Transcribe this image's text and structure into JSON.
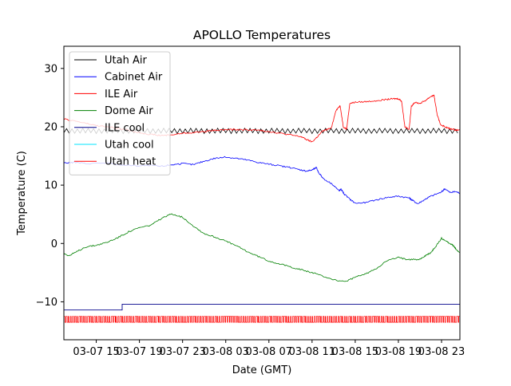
{
  "chart_data": {
    "type": "line",
    "title": "APOLLO Temperatures",
    "xlabel": "Date (GMT)",
    "ylabel": "Temperature (C)",
    "xlim": [
      12,
      48.7
    ],
    "ylim": [
      -16.5,
      33.8
    ],
    "x_unit": "hours since 03-07 00:00 GMT",
    "yticks": [
      -10,
      0,
      10,
      20,
      30
    ],
    "ytick_labels": [
      "−10",
      "0",
      "10",
      "20",
      "30"
    ],
    "xticks": [
      15,
      19,
      23,
      27,
      31,
      35,
      39,
      43,
      47
    ],
    "xtick_labels": [
      "03-07 15",
      "03-07 19",
      "03-07 23",
      "03-08 03",
      "03-08 07",
      "03-08 11",
      "03-08 15",
      "03-08 19",
      "03-08 23"
    ],
    "legend_position": "upper-left",
    "series": [
      {
        "name": "Utah Air",
        "color": "#000000",
        "style": "oscillating",
        "x": [
          12,
          48.7
        ],
        "y": [
          19.3,
          19.3
        ],
        "amplitude": 0.45,
        "period_hours": 0.5
      },
      {
        "name": "Cabinet Air",
        "color": "#0000ff",
        "x": [
          12,
          13,
          14,
          16,
          17,
          18,
          19,
          20,
          21,
          22,
          23,
          24,
          25,
          26,
          27,
          28,
          29,
          30,
          31,
          32,
          33,
          34,
          34.5,
          35,
          35.4,
          35.6,
          36,
          37,
          37.5,
          37.7,
          38,
          38.5,
          39,
          40,
          41,
          42,
          43,
          44,
          44.3,
          44.8,
          45.5,
          46,
          47,
          47.3,
          47.8,
          48.3,
          48.7
        ],
        "y": [
          13.8,
          13.9,
          13.7,
          13.8,
          13.5,
          13.4,
          13.3,
          13.4,
          13.2,
          13.5,
          13.7,
          13.5,
          14.1,
          14.6,
          14.8,
          14.6,
          14.3,
          13.9,
          13.6,
          13.3,
          13.0,
          12.6,
          12.4,
          12.6,
          13.0,
          12.2,
          11.2,
          10.0,
          9.0,
          9.3,
          8.4,
          7.6,
          6.9,
          7.0,
          7.5,
          7.9,
          8.1,
          7.8,
          7.4,
          6.8,
          7.6,
          8.1,
          8.8,
          9.4,
          8.7,
          8.9,
          8.6
        ]
      },
      {
        "name": "ILE Air",
        "color": "#ff0000",
        "x": [
          12,
          13,
          14,
          15,
          16,
          17,
          18,
          19,
          20,
          21,
          22,
          23,
          24,
          25,
          26,
          27,
          28,
          29,
          30,
          31,
          32,
          33,
          34,
          34.5,
          35,
          35.5,
          36,
          36.8,
          37.2,
          37.6,
          37.9,
          38.2,
          38.5,
          39,
          40,
          41,
          42,
          42.6,
          43,
          43.3,
          43.6,
          44,
          44.2,
          44.5,
          45,
          45.5,
          46,
          46.3,
          46.6,
          46.9,
          47.3,
          47.7,
          48.2,
          48.7
        ],
        "y": [
          21.3,
          21.0,
          20.6,
          20.2,
          20.0,
          19.7,
          19.4,
          19.0,
          18.7,
          18.5,
          18.6,
          18.9,
          19.0,
          19.2,
          19.4,
          19.5,
          19.5,
          19.5,
          19.4,
          19.2,
          18.9,
          18.6,
          18.3,
          17.8,
          17.4,
          18.3,
          19.3,
          19.8,
          22.8,
          23.6,
          20.0,
          19.6,
          24.0,
          24.2,
          24.3,
          24.5,
          24.7,
          24.8,
          24.8,
          24.4,
          20.0,
          19.6,
          23.5,
          24.2,
          24.0,
          24.5,
          25.2,
          25.4,
          22.0,
          20.4,
          20.0,
          19.7,
          19.5,
          19.4
        ]
      },
      {
        "name": "Dome Air",
        "color": "#008000",
        "x": [
          12,
          12.5,
          13,
          14,
          15,
          16,
          17,
          18,
          19,
          20,
          21,
          22,
          23,
          24,
          25,
          26,
          27,
          28,
          29,
          30,
          31,
          32,
          33,
          34,
          35,
          36,
          37,
          38,
          39,
          40,
          41,
          42,
          43,
          44,
          45,
          45.5,
          46,
          46.5,
          47,
          47.5,
          48,
          48.3,
          48.7
        ],
        "y": [
          -1.7,
          -2.1,
          -1.6,
          -0.6,
          -0.3,
          0.2,
          1.0,
          2.0,
          2.7,
          3.1,
          4.2,
          5.1,
          4.5,
          3.0,
          1.7,
          1.1,
          0.4,
          -0.4,
          -1.4,
          -2.2,
          -3.0,
          -3.5,
          -4.0,
          -4.5,
          -5.0,
          -5.6,
          -6.2,
          -6.6,
          -5.8,
          -5.2,
          -4.2,
          -2.9,
          -2.4,
          -2.8,
          -2.7,
          -2.1,
          -1.6,
          -0.4,
          0.9,
          0.3,
          -0.2,
          -0.9,
          -1.6
        ]
      },
      {
        "name": "ILE cool",
        "color": "#00008b",
        "style": "step",
        "x": [
          12,
          17.4,
          17.4,
          48.7
        ],
        "y": [
          -11.4,
          -11.4,
          -10.4,
          -10.4
        ]
      },
      {
        "name": "Utah cool",
        "color": "#00e5ff",
        "style": "hidden",
        "x": [],
        "y": []
      },
      {
        "name": "Utah heat",
        "color": "#ff0000",
        "style": "pulses",
        "x": [
          12,
          48.7
        ],
        "y_low": -13.5,
        "y_high": -12.5,
        "pulse_period_hours": 0.2
      }
    ]
  }
}
